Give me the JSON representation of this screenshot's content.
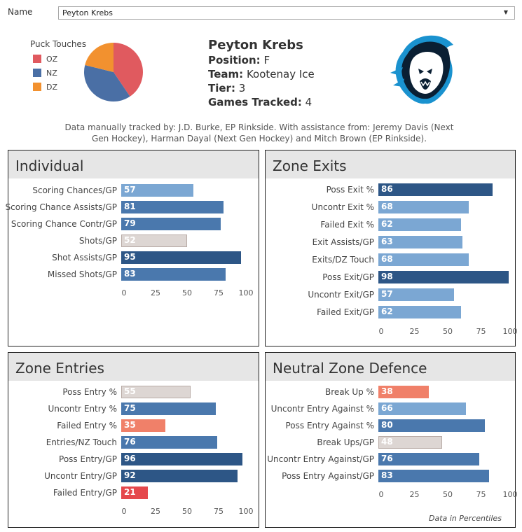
{
  "filter": {
    "label": "Name",
    "value": "Peyton Krebs"
  },
  "puck_touches": {
    "title": "Puck Touches",
    "legend": [
      {
        "name": "OZ",
        "color": "#e05a5f"
      },
      {
        "name": "NZ",
        "color": "#4a6fa5"
      },
      {
        "name": "DZ",
        "color": "#f2912f"
      }
    ]
  },
  "player": {
    "name": "Peyton Krebs",
    "position_label": "Position:",
    "position": "F",
    "team_label": "Team:",
    "team": "Kootenay Ice",
    "tier_label": "Tier:",
    "tier": "3",
    "games_label": "Games Tracked:",
    "games": "4"
  },
  "credit": "Data manually tracked by: J.D. Burke, EP Rinkside. With assistance from: Jeremy Davis (Next Gen Hockey), Harman Dayal (Next Gen Hockey) and Mitch Brown (EP Rinkside).",
  "colors": {
    "high_dark": "#2d5686",
    "high_mid": "#4a78ad",
    "mid_light": "#7ba7d3",
    "neutral": "#ddd6d3",
    "low_mid": "#f08069",
    "low_dark": "#e5484c"
  },
  "chart_data": [
    {
      "type": "bar",
      "title": "Individual",
      "categories": [
        "Scoring Chances/GP",
        "Scoring Chance Assists/GP",
        "Scoring Chance Contr/GP",
        "Shots/GP",
        "Shot Assists/GP",
        "Missed Shots/GP"
      ],
      "values": [
        57,
        81,
        79,
        52,
        95,
        83
      ],
      "ticks": [
        "0",
        "25",
        "50",
        "75",
        "100"
      ],
      "xlim": [
        0,
        100
      ]
    },
    {
      "type": "bar",
      "title": "Zone Exits",
      "categories": [
        "Poss Exit %",
        "Uncontr Exit %",
        "Failed Exit %",
        "Exit Assists/GP",
        "Exits/DZ Touch",
        "Poss Exit/GP",
        "Uncontr Exit/GP",
        "Failed Exit/GP"
      ],
      "values": [
        86,
        68,
        62,
        63,
        68,
        98,
        57,
        62
      ],
      "ticks": [
        "0",
        "25",
        "50",
        "75",
        "100"
      ],
      "xlim": [
        0,
        100
      ]
    },
    {
      "type": "bar",
      "title": "Zone Entries",
      "categories": [
        "Poss Entry %",
        "Uncontr Entry %",
        "Failed Entry %",
        "Entries/NZ Touch",
        "Poss Entry/GP",
        "Uncontr Entry/GP",
        "Failed Entry/GP"
      ],
      "values": [
        55,
        75,
        35,
        76,
        96,
        92,
        21
      ],
      "ticks": [
        "0",
        "25",
        "50",
        "75",
        "100"
      ],
      "xlim": [
        0,
        100
      ]
    },
    {
      "type": "bar",
      "title": "Neutral Zone Defence",
      "categories": [
        "Break Up %",
        "Uncontr Entry Against %",
        "Poss Entry Against %",
        "Break Ups/GP",
        "Uncontr Entry Against/GP",
        "Poss Entry Against/GP"
      ],
      "values": [
        38,
        66,
        80,
        48,
        76,
        83
      ],
      "ticks": [
        "0",
        "25",
        "50",
        "75",
        "100"
      ],
      "xlim": [
        0,
        100
      ]
    }
  ],
  "footnote": "Data in Percentiles"
}
